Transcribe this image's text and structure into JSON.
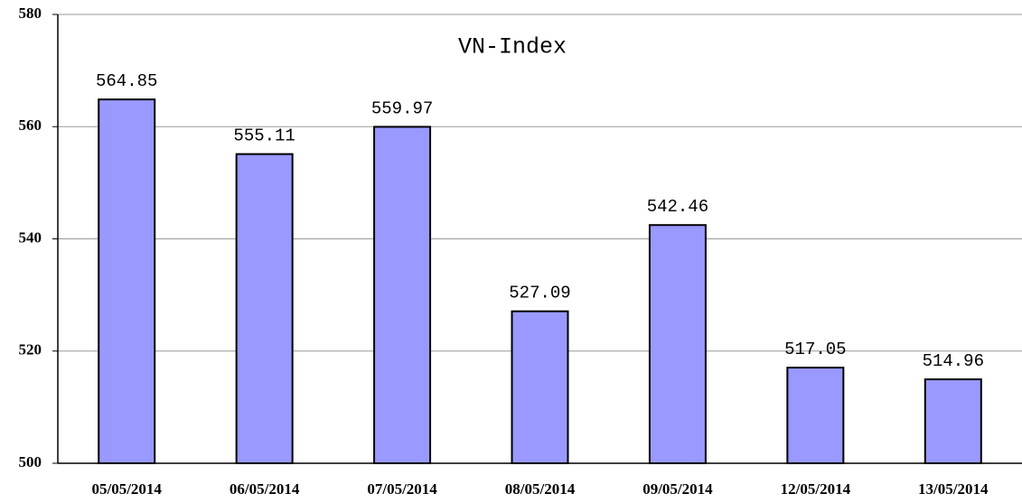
{
  "chart_data": {
    "type": "bar",
    "title": "VN-Index",
    "categories": [
      "05/05/2014",
      "06/05/2014",
      "07/05/2014",
      "08/05/2014",
      "09/05/2014",
      "12/05/2014",
      "13/05/2014"
    ],
    "values": [
      564.85,
      555.11,
      559.97,
      527.09,
      542.46,
      517.05,
      514.96
    ],
    "color": "#9999ff",
    "ylim": [
      500,
      580
    ],
    "yticks": [
      500,
      520,
      540,
      560,
      580
    ],
    "grid": true
  }
}
